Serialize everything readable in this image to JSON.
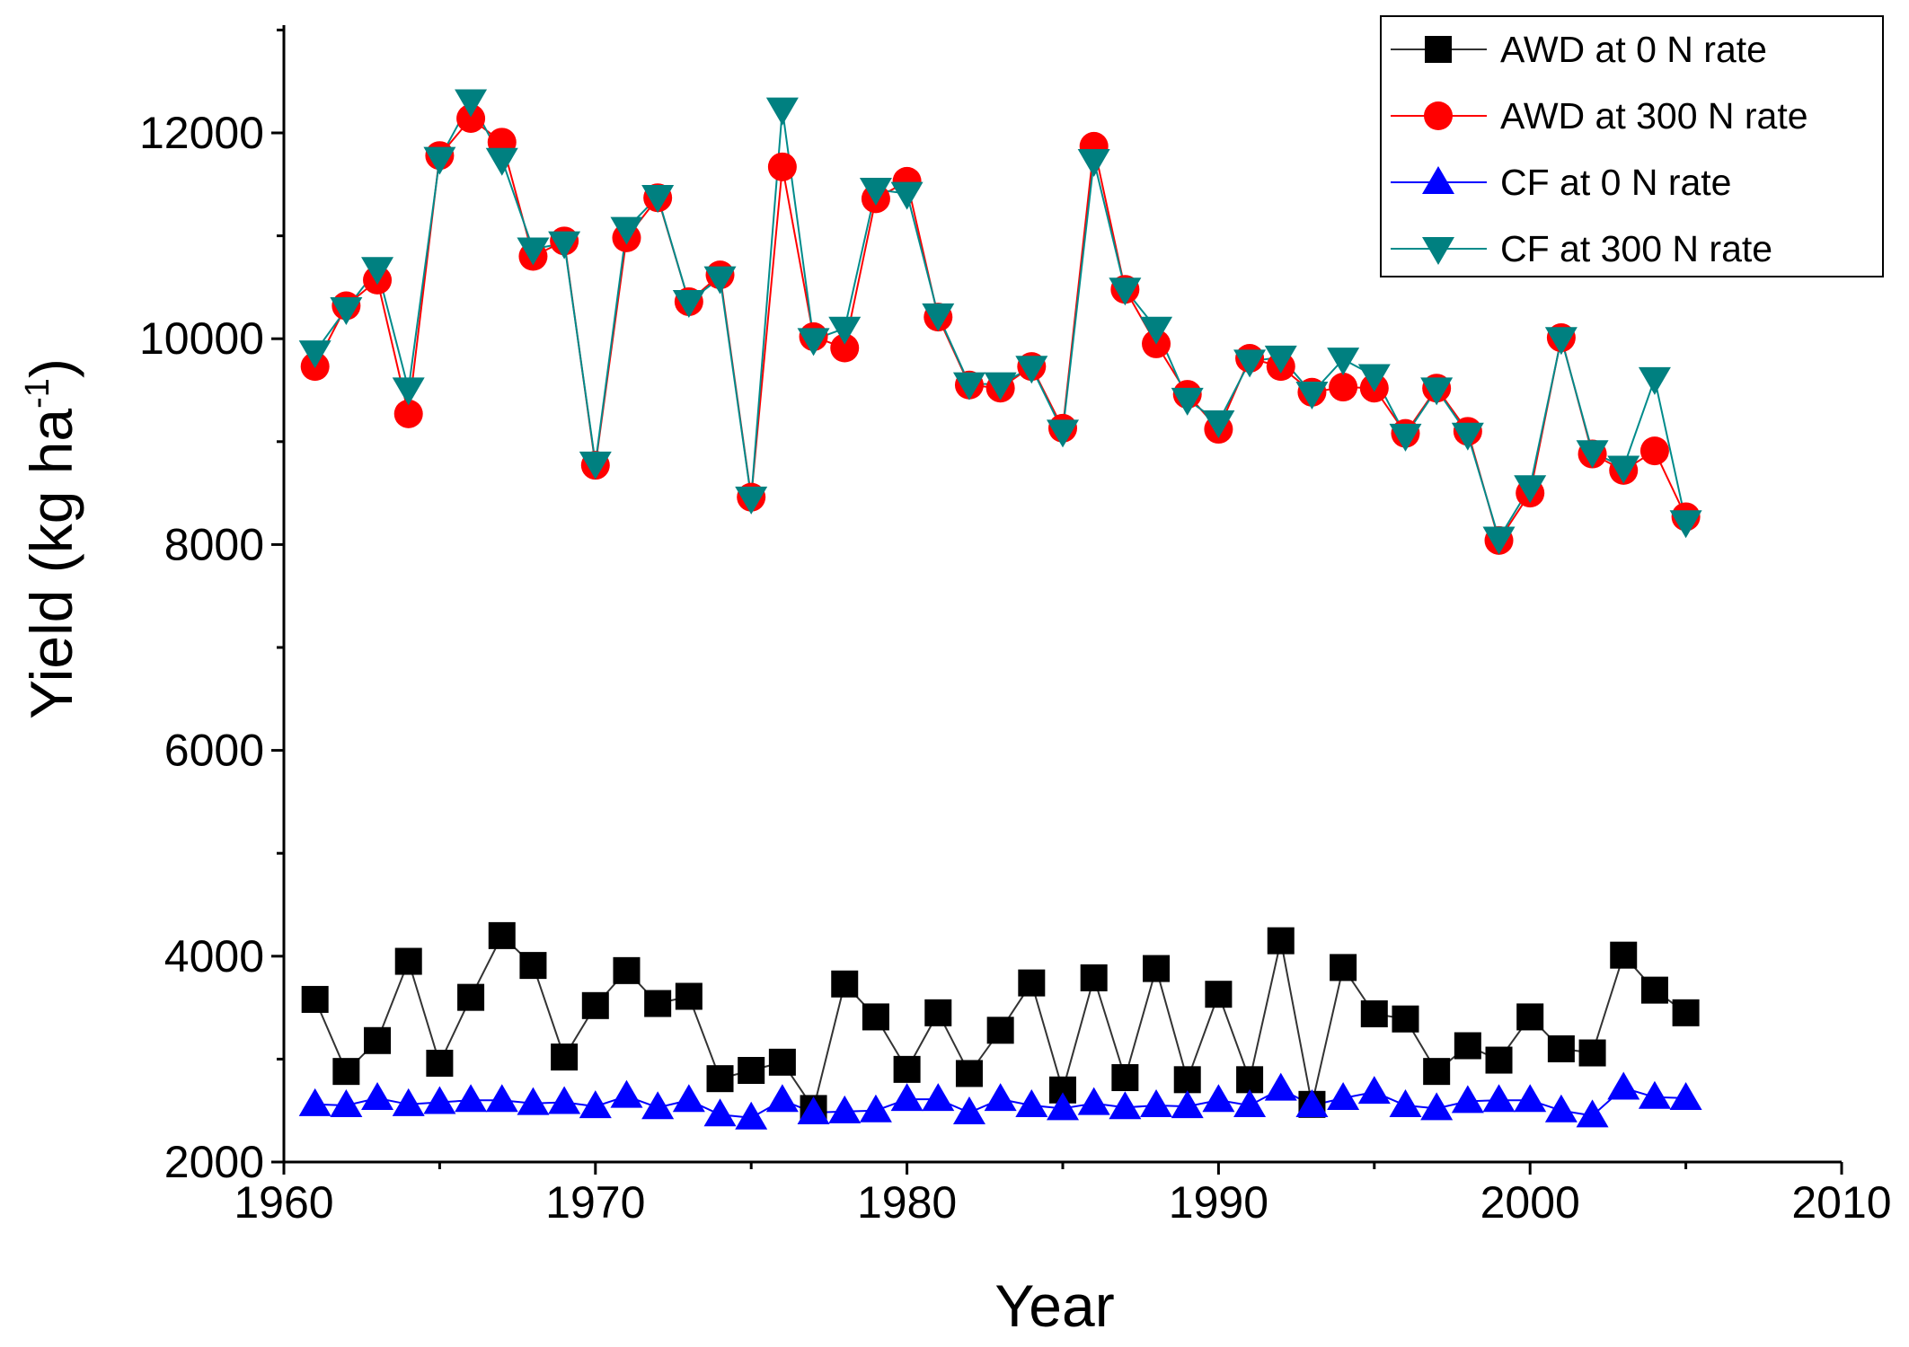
{
  "chart_data": {
    "type": "line",
    "title": "",
    "xlabel": "Year",
    "ylabel": "Yield (kg ha",
    "ylabel_sup": "-1",
    "ylabel_close": ")",
    "xlim": [
      1960,
      2010
    ],
    "ylim": [
      2000,
      13000
    ],
    "xticks": [
      1960,
      1970,
      1980,
      1990,
      2000,
      2010
    ],
    "yticks": [
      2000,
      4000,
      6000,
      8000,
      10000,
      12000
    ],
    "legend_position": "top-right",
    "x": [
      1961,
      1962,
      1963,
      1964,
      1965,
      1966,
      1967,
      1968,
      1969,
      1970,
      1971,
      1972,
      1973,
      1974,
      1975,
      1976,
      1977,
      1978,
      1979,
      1980,
      1981,
      1982,
      1983,
      1984,
      1985,
      1986,
      1987,
      1988,
      1989,
      1990,
      1991,
      1992,
      1993,
      1994,
      1995,
      1996,
      1997,
      1998,
      1999,
      2000,
      2001,
      2002,
      2003,
      2004,
      2005
    ],
    "series": [
      {
        "name": "AWD at 0 N rate",
        "marker": "square",
        "color": "#000000",
        "line_color": "#333333",
        "values": [
          3580,
          2880,
          3180,
          3950,
          2960,
          3600,
          4200,
          3910,
          3020,
          3520,
          3860,
          3540,
          3610,
          2810,
          2890,
          2970,
          2520,
          3730,
          3410,
          2900,
          3450,
          2860,
          3280,
          3740,
          2700,
          3790,
          2820,
          3880,
          2800,
          3630,
          2800,
          4150,
          2560,
          3890,
          3440,
          3390,
          2880,
          3130,
          2990,
          3410,
          3100,
          3060,
          4010,
          3670,
          3450
        ]
      },
      {
        "name": "AWD at 300 N rate",
        "marker": "circle",
        "color": "#ff0000",
        "line_color": "#ff0000",
        "values": [
          9730,
          10320,
          10570,
          9270,
          11780,
          12140,
          11910,
          10800,
          10950,
          8770,
          10980,
          11370,
          10360,
          10620,
          8460,
          11670,
          10020,
          9910,
          11360,
          11530,
          10210,
          9550,
          9520,
          9730,
          9130,
          11870,
          10480,
          9950,
          9460,
          9120,
          9810,
          9730,
          9480,
          9530,
          9520,
          9080,
          9520,
          9100,
          8040,
          8500,
          10010,
          8880,
          8720,
          8910,
          8270
        ]
      },
      {
        "name": "CF at 0 N rate",
        "marker": "triangle-up",
        "color": "#0000ff",
        "line_color": "#0000ff",
        "values": [
          2560,
          2550,
          2620,
          2560,
          2580,
          2600,
          2600,
          2570,
          2580,
          2540,
          2640,
          2530,
          2600,
          2460,
          2430,
          2600,
          2480,
          2490,
          2500,
          2610,
          2610,
          2480,
          2610,
          2550,
          2520,
          2570,
          2530,
          2550,
          2540,
          2600,
          2550,
          2710,
          2550,
          2620,
          2680,
          2550,
          2520,
          2590,
          2600,
          2600,
          2500,
          2450,
          2720,
          2630,
          2620
        ]
      },
      {
        "name": "CF at 300 N rate",
        "marker": "triangle-down",
        "color": "#008080",
        "line_color": "#008b8b",
        "values": [
          9870,
          10290,
          10680,
          9510,
          11750,
          12310,
          11740,
          10870,
          10930,
          8790,
          11070,
          11380,
          10360,
          10590,
          8450,
          12230,
          9990,
          10100,
          11450,
          11410,
          10230,
          9560,
          9560,
          9720,
          9100,
          11730,
          10480,
          10100,
          9410,
          9190,
          9780,
          9820,
          9470,
          9800,
          9640,
          9060,
          9510,
          9070,
          8060,
          8560,
          10000,
          8900,
          8750,
          9610,
          8220
        ]
      }
    ]
  }
}
